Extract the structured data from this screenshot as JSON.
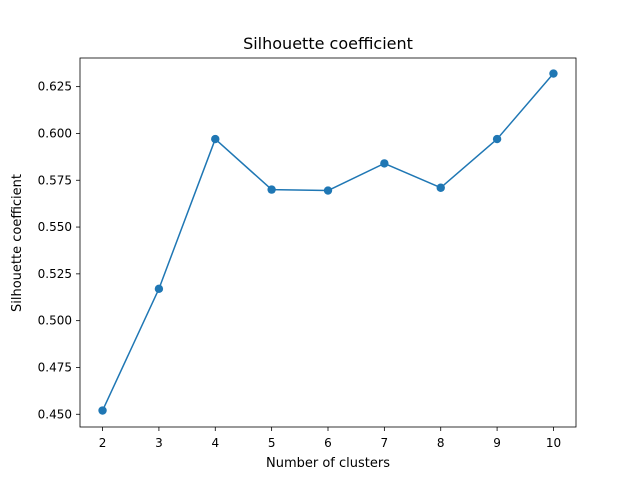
{
  "chart_data": {
    "type": "line",
    "title": "Silhouette coefficient",
    "xlabel": "Number of clusters",
    "ylabel": "Silhouette coefficient",
    "x": [
      2,
      3,
      4,
      5,
      6,
      7,
      8,
      9,
      10
    ],
    "xticks": [
      "2",
      "3",
      "4",
      "5",
      "6",
      "7",
      "8",
      "9",
      "10"
    ],
    "yticks": [
      "0.450",
      "0.475",
      "0.500",
      "0.525",
      "0.550",
      "0.575",
      "0.600",
      "0.625"
    ],
    "xlim": [
      1.6,
      10.4
    ],
    "ylim": [
      0.4432,
      0.6403
    ],
    "grid": false,
    "marker": "circle",
    "series": [
      {
        "color": "#1f77b4",
        "values": [
          0.452,
          0.517,
          0.597,
          0.57,
          0.5695,
          0.584,
          0.571,
          0.597,
          0.632
        ]
      }
    ]
  }
}
